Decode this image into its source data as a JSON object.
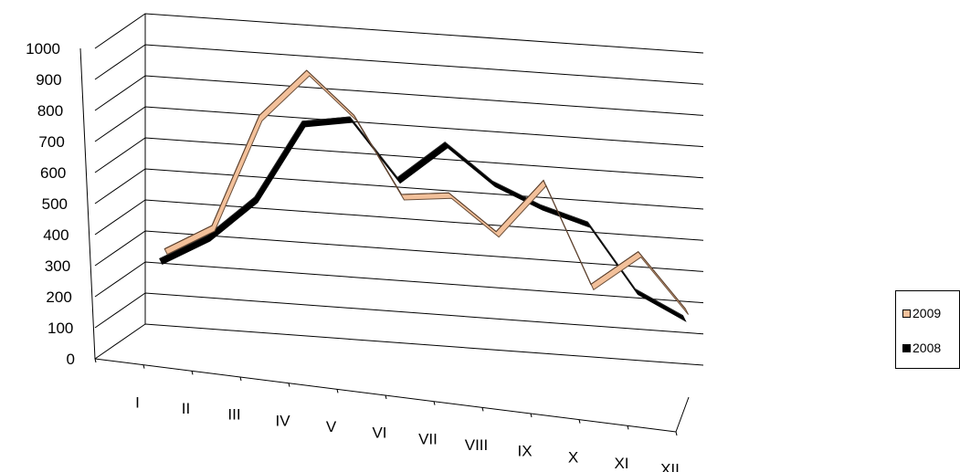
{
  "chart_data": {
    "type": "line",
    "title": "",
    "xlabel": "",
    "ylabel": "",
    "categories": [
      "I",
      "II",
      "III",
      "IV",
      "V",
      "VI",
      "VII",
      "VIII",
      "IX",
      "X",
      "XI",
      "XII"
    ],
    "ylim": [
      0,
      1000
    ],
    "yticks": [
      "0",
      "100",
      "200",
      "300",
      "400",
      "500",
      "600",
      "700",
      "800",
      "900",
      "1000"
    ],
    "grid": true,
    "legend_position": "right",
    "series": [
      {
        "name": "2009",
        "color": "#f2c09a",
        "values": [
          300,
          390,
          760,
          920,
          790,
          550,
          570,
          460,
          640,
          320,
          440,
          270
        ]
      },
      {
        "name": "2008",
        "color": "#000000",
        "values": [
          280,
          370,
          510,
          770,
          800,
          620,
          750,
          640,
          580,
          540,
          340,
          270
        ]
      }
    ]
  }
}
